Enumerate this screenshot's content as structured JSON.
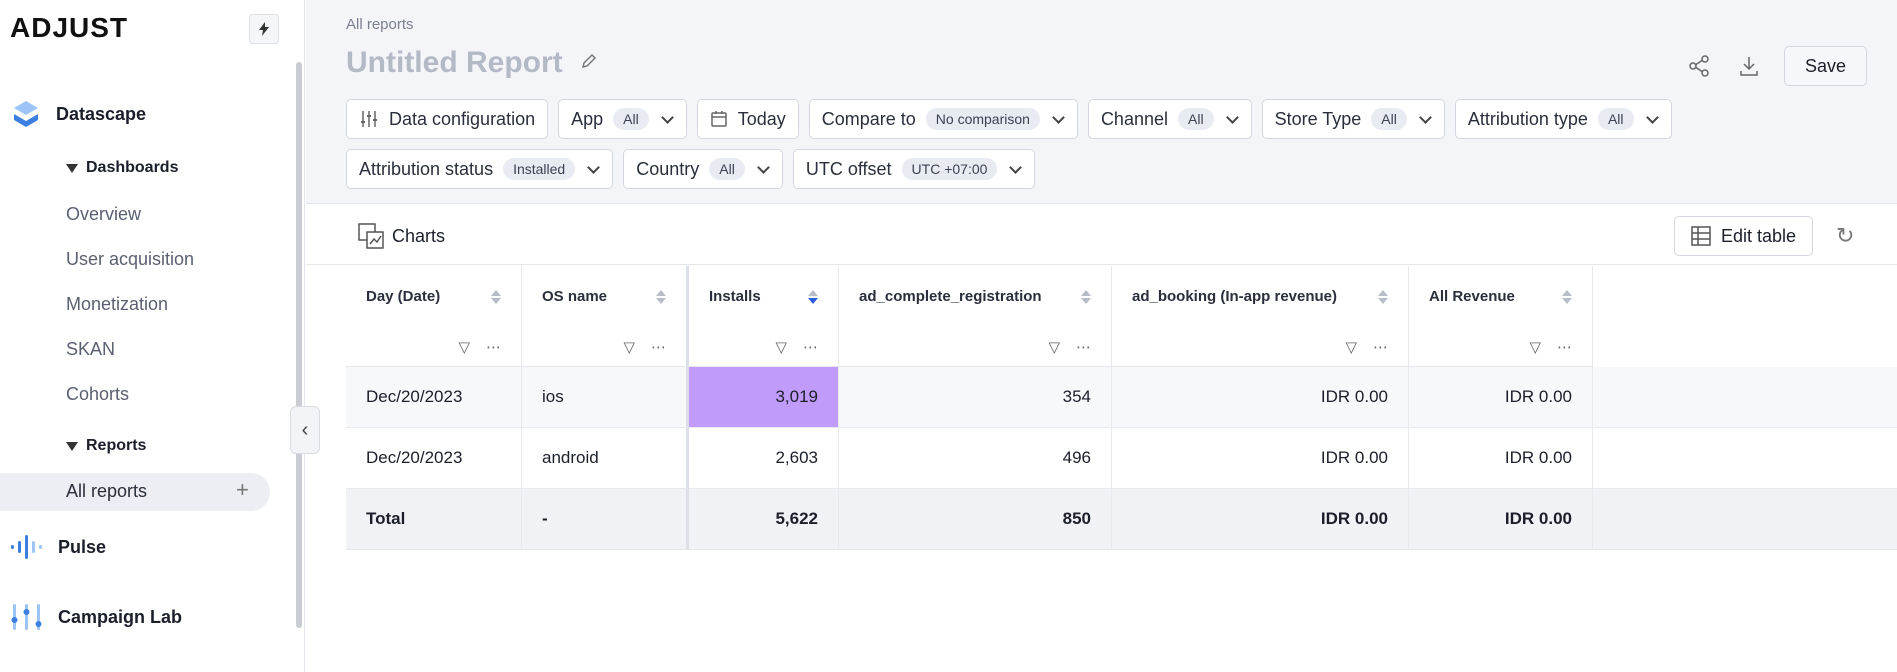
{
  "sidebar": {
    "logo": "ADJUST",
    "apps": [
      {
        "name": "Datascape"
      },
      {
        "name": "Pulse"
      },
      {
        "name": "Campaign Lab"
      }
    ],
    "dashboards_heading": "Dashboards",
    "dashboards": [
      "Overview",
      "User acquisition",
      "Monetization",
      "SKAN",
      "Cohorts"
    ],
    "reports_heading": "Reports",
    "active_item": "All reports",
    "add_symbol": "+"
  },
  "header": {
    "breadcrumb": "All reports",
    "title": "Untitled Report",
    "save_label": "Save"
  },
  "filters": {
    "data_config": "Data configuration",
    "app": {
      "label": "App",
      "value": "All"
    },
    "date": "Today",
    "compare": {
      "label": "Compare to",
      "value": "No comparison"
    },
    "channel": {
      "label": "Channel",
      "value": "All"
    },
    "store_type": {
      "label": "Store Type",
      "value": "All"
    },
    "attribution_type": {
      "label": "Attribution type",
      "value": "All"
    },
    "attribution_status": {
      "label": "Attribution status",
      "value": "Installed"
    },
    "country": {
      "label": "Country",
      "value": "All"
    },
    "utc_offset": {
      "label": "UTC offset",
      "value": "UTC +07:00"
    }
  },
  "toolbar": {
    "charts_label": "Charts",
    "edit_table_label": "Edit table"
  },
  "table": {
    "columns": [
      "Day (Date)",
      "OS name",
      "Installs",
      "ad_complete_registration",
      "ad_booking (In-app revenue)",
      "All Revenue"
    ],
    "rows": [
      [
        "Dec/20/2023",
        "ios",
        "3,019",
        "354",
        "IDR 0.00",
        "IDR 0.00"
      ],
      [
        "Dec/20/2023",
        "android",
        "2,603",
        "496",
        "IDR 0.00",
        "IDR 0.00"
      ]
    ],
    "total": [
      "Total",
      "-",
      "5,622",
      "850",
      "IDR 0.00",
      "IDR 0.00"
    ],
    "highlight_color": "#c19bfa"
  }
}
